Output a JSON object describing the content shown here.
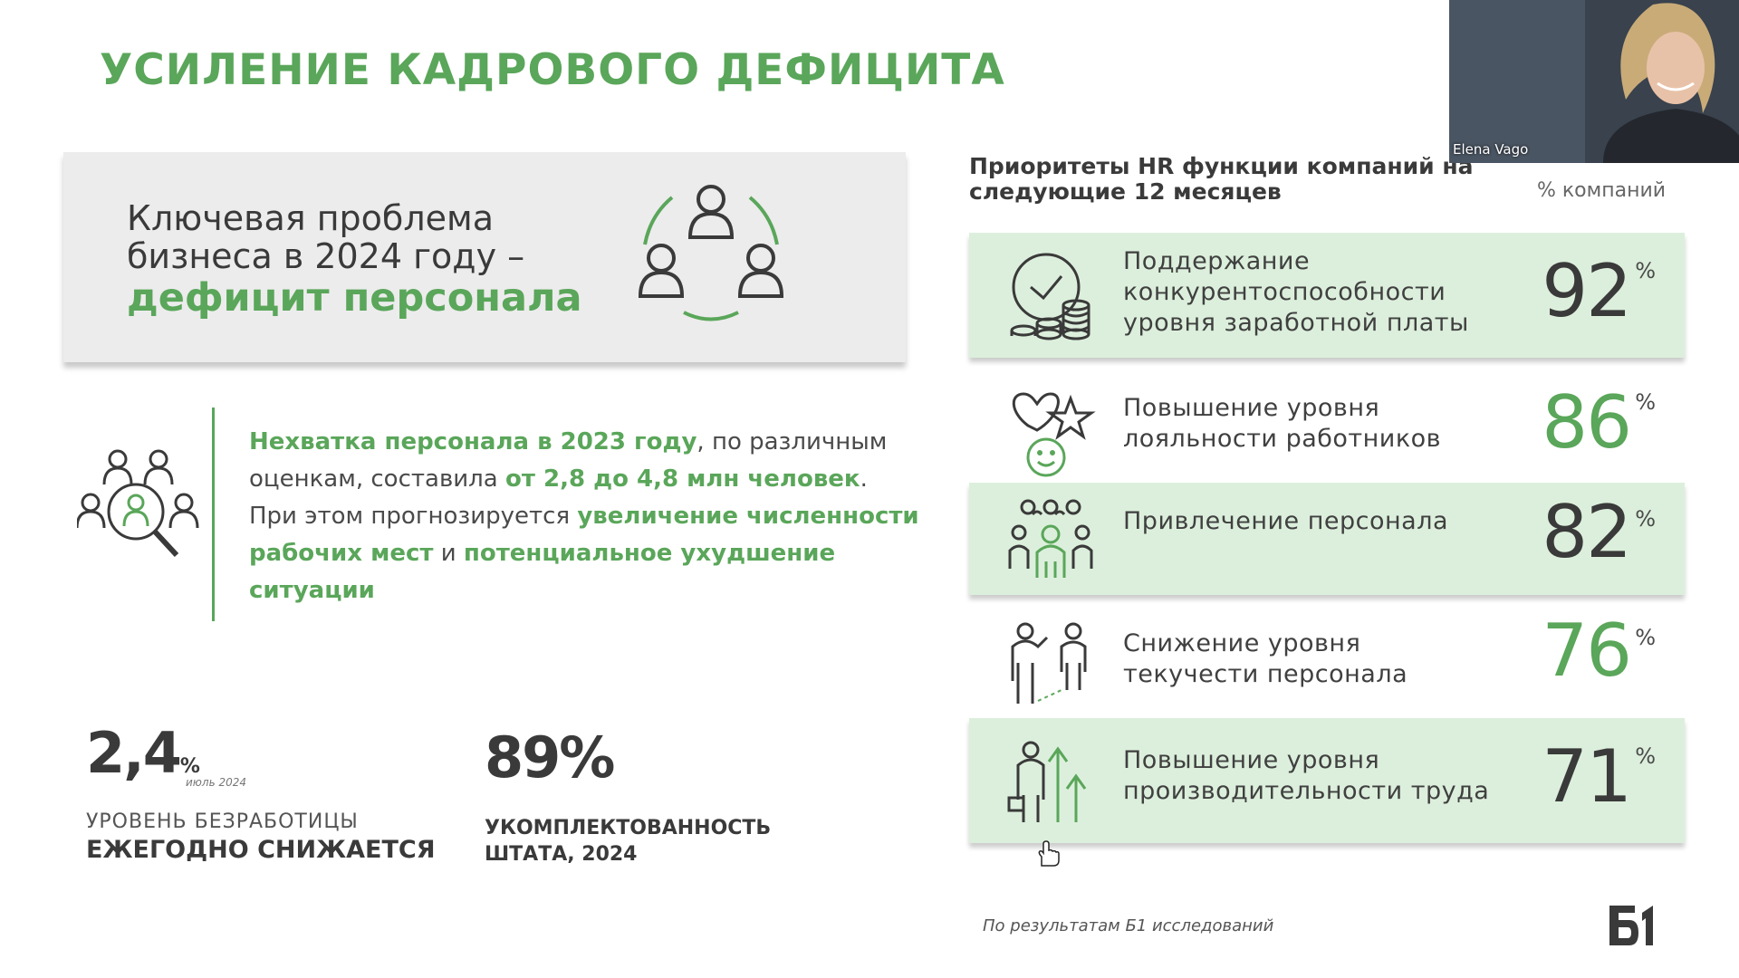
{
  "title": "УСИЛЕНИЕ КАДРОВОГО ДЕФИЦИТА",
  "problem": {
    "line1": "Ключевая проблема",
    "line2": "бизнеса в 2024 году –",
    "highlight": "дефицит персонала"
  },
  "shortage": {
    "part1": "Нехватка персонала в 2023 году",
    "part2": ", по различным оценкам, составила ",
    "part3": "от 2,8 до 4,8 млн человек",
    "part4": ". При этом прогнозируется ",
    "part5": "увеличение численности рабочих мест",
    "part6": " и ",
    "part7": "потенциальное ухудшение ситуации"
  },
  "stats": {
    "unemployment": {
      "value": "2,4",
      "unit": "%",
      "note": "июль 2024",
      "label1": "УРОВЕНЬ БЕЗРАБОТИЦЫ",
      "label2": "ЕЖЕГОДНО СНИЖАЕТСЯ"
    },
    "staffing": {
      "value": "89%",
      "label1": "УКОМПЛЕКТОВАННОСТЬ",
      "label2": "ШТАТА, 2024"
    }
  },
  "hr": {
    "title": "Приоритеты HR функции компаний на следующие 12 месяцев",
    "unit": "% компаний",
    "rows": [
      {
        "label": "Поддержание конкурентоспособности уровня заработной платы",
        "value": "92",
        "pct": "%",
        "icon": "clock-coins-icon"
      },
      {
        "label": "Повышение уровня лояльности работников",
        "value": "86",
        "pct": "%",
        "icon": "heart-star-smile-icon"
      },
      {
        "label": "Привлечение персонала",
        "value": "82",
        "pct": "%",
        "icon": "team-icon"
      },
      {
        "label": "Снижение уровня текучести персонала",
        "value": "76",
        "pct": "%",
        "icon": "people-exit-icon"
      },
      {
        "label": "Повышение уровня производительности труда",
        "value": "71",
        "pct": "%",
        "icon": "worker-growth-icon"
      }
    ]
  },
  "source": "По результатам Б1 исследований",
  "logo": "Б1",
  "webcam": {
    "name": "Elena Vago"
  },
  "colors": {
    "accent": "#5aa65a",
    "shaded": "#dcefdc",
    "text": "#3a3a3a"
  }
}
